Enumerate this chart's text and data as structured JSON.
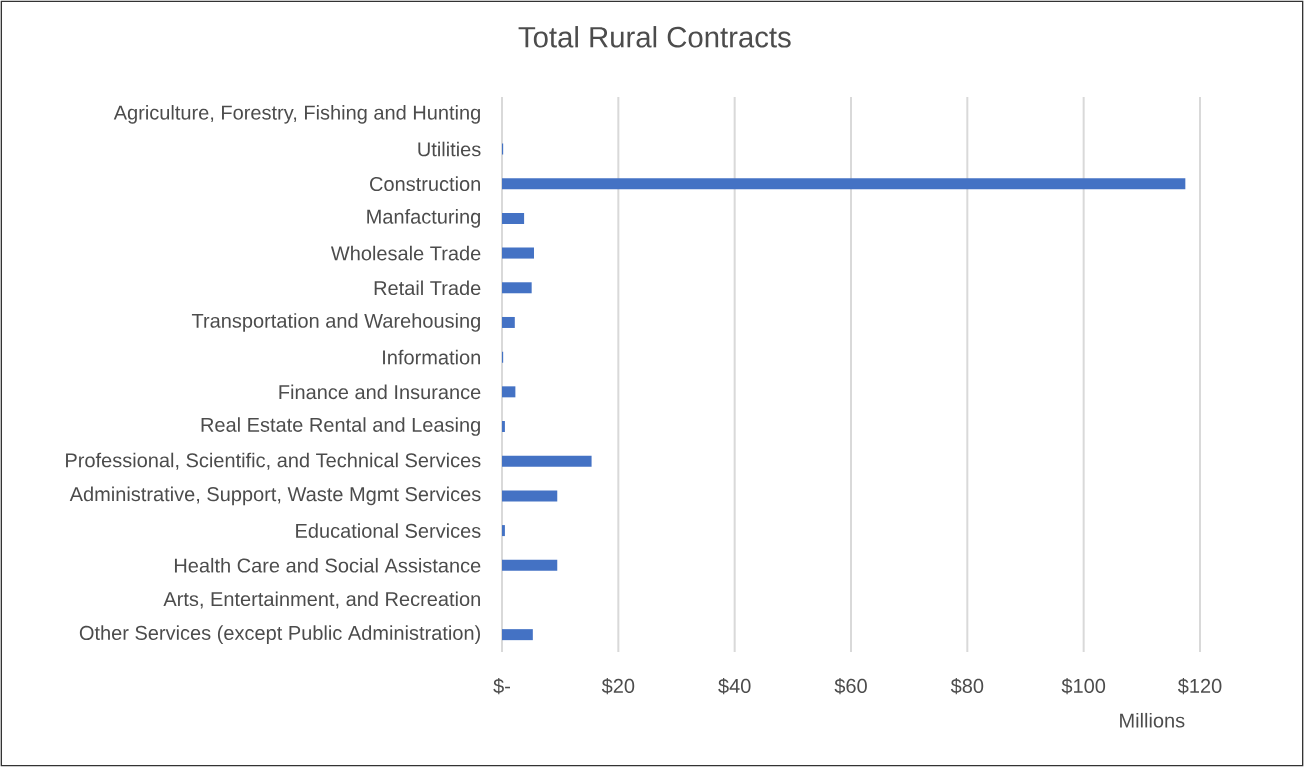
{
  "chart_data": {
    "type": "bar",
    "orientation": "horizontal",
    "title": "Total Rural Contracts",
    "xlabel": "Millions",
    "categories": [
      "Agriculture, Forestry, Fishing and Hunting",
      "Utilities",
      "Construction",
      "Manfacturing",
      "Wholesale Trade",
      "Retail Trade",
      "Transportation and Warehousing",
      "Information",
      "Finance and Insurance",
      "Real Estate Rental and Leasing",
      "Professional, Scientific, and Technical Services",
      "Administrative, Support, Waste Mgmt Services",
      "Educational Services",
      "Health Care and Social Assistance",
      "Arts, Entertainment, and Recreation",
      "Other Services (except Public Administration)"
    ],
    "values": [
      0,
      0.2,
      117.5,
      3.8,
      5.5,
      5.1,
      2.2,
      0.2,
      2.3,
      0.5,
      15.4,
      9.5,
      0.5,
      9.5,
      0,
      5.3
    ],
    "color": "#4472c4",
    "xlim": [
      0,
      120
    ],
    "xticks": [
      {
        "value": 0,
        "label": "$-"
      },
      {
        "value": 20,
        "label": "$20"
      },
      {
        "value": 40,
        "label": "$40"
      },
      {
        "value": 60,
        "label": "$60"
      },
      {
        "value": 80,
        "label": "$80"
      },
      {
        "value": 100,
        "label": "$100"
      },
      {
        "value": 120,
        "label": "$120"
      }
    ],
    "grid": "x"
  }
}
